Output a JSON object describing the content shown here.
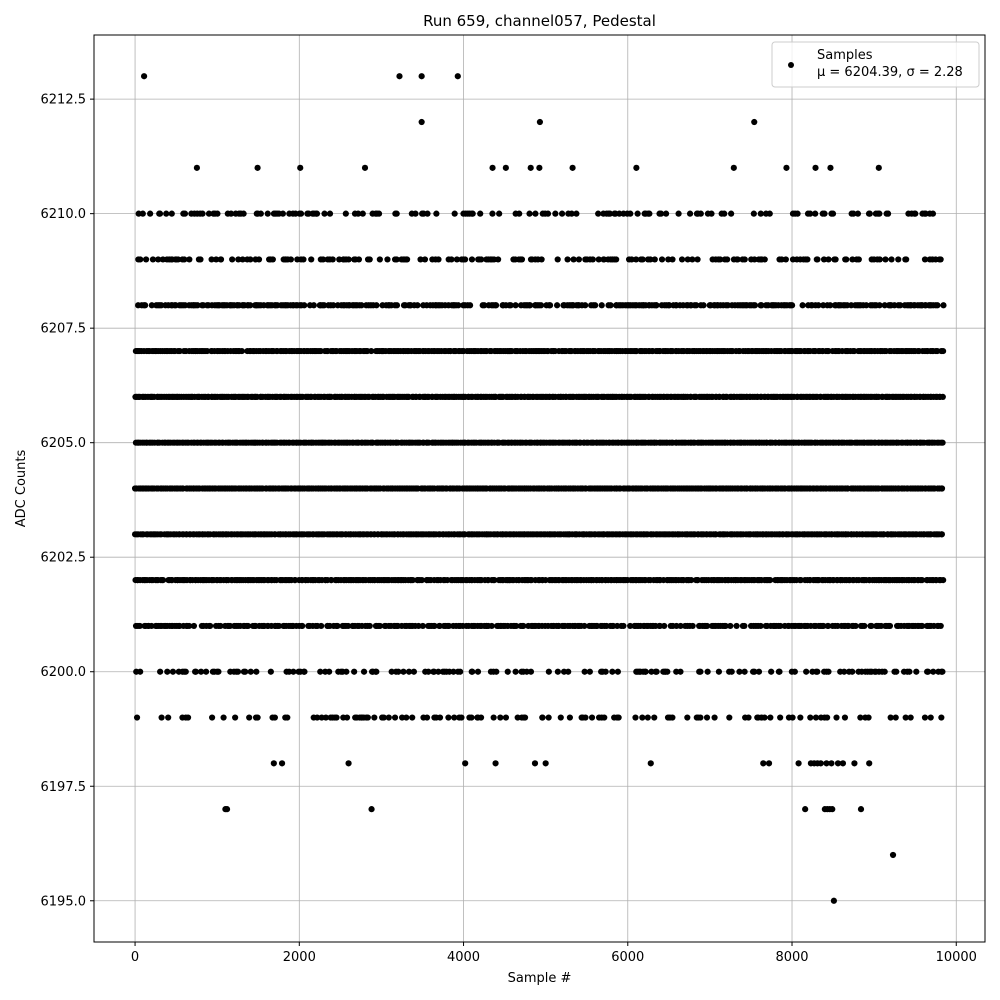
{
  "chart_data": {
    "type": "scatter",
    "title": "Run 659, channel057, Pedestal",
    "xlabel": "Sample #",
    "ylabel": "ADC Counts",
    "xlim": [
      -500,
      10350
    ],
    "ylim": [
      6194.1,
      6213.9
    ],
    "xticks": [
      0,
      2000,
      4000,
      6000,
      8000,
      10000
    ],
    "yticks": [
      6195.0,
      6197.5,
      6200.0,
      6202.5,
      6205.0,
      6207.5,
      6210.0,
      6212.5
    ],
    "xtick_labels": [
      "0",
      "2000",
      "4000",
      "6000",
      "8000",
      "10000"
    ],
    "ytick_labels": [
      "6195.0",
      "6197.5",
      "6200.0",
      "6202.5",
      "6205.0",
      "6207.5",
      "6210.0",
      "6212.5"
    ],
    "grid": true,
    "legend": {
      "placement": "top-right",
      "entries": [
        {
          "name": "Samples",
          "stats": "μ = 6204.39, σ = 2.28",
          "color": "#000000"
        }
      ]
    },
    "series": [
      {
        "name": "Samples",
        "color": "#000000",
        "x_range": [
          0,
          9850
        ],
        "levels": [
          {
            "y": 6195,
            "x": [
              8510
            ]
          },
          {
            "y": 6196,
            "x": [
              9230
            ]
          },
          {
            "y": 6197,
            "x": [
              1100,
              1120,
              2880,
              8160,
              8400,
              8430,
              8460,
              8490,
              8840
            ]
          },
          {
            "y": 6198,
            "x": [
              1690,
              1790,
              2600,
              4020,
              4390,
              4870,
              5000,
              6280,
              7650,
              7720,
              8080,
              8230,
              8270,
              8310,
              8350,
              8420,
              8480,
              8560,
              8620,
              8760,
              8940
            ]
          },
          {
            "y": 6212,
            "x": [
              3490,
              4930,
              7540
            ]
          },
          {
            "y": 6213,
            "x": [
              110,
              3220,
              3490,
              3930
            ]
          }
        ],
        "dense_bands": [
          {
            "y": 6199,
            "fill": 0.25
          },
          {
            "y": 6200,
            "fill": 0.35
          },
          {
            "y": 6201,
            "fill": 0.75
          },
          {
            "y": 6202,
            "fill": 0.95
          },
          {
            "y": 6203,
            "fill": 1.0
          },
          {
            "y": 6204,
            "fill": 1.0
          },
          {
            "y": 6205,
            "fill": 1.0
          },
          {
            "y": 6206,
            "fill": 1.0
          },
          {
            "y": 6207,
            "fill": 0.95
          },
          {
            "y": 6208,
            "fill": 0.7
          },
          {
            "y": 6209,
            "fill": 0.4
          },
          {
            "y": 6210,
            "fill": 0.3
          },
          {
            "y": 6211,
            "fill": 0.03
          }
        ]
      }
    ]
  }
}
